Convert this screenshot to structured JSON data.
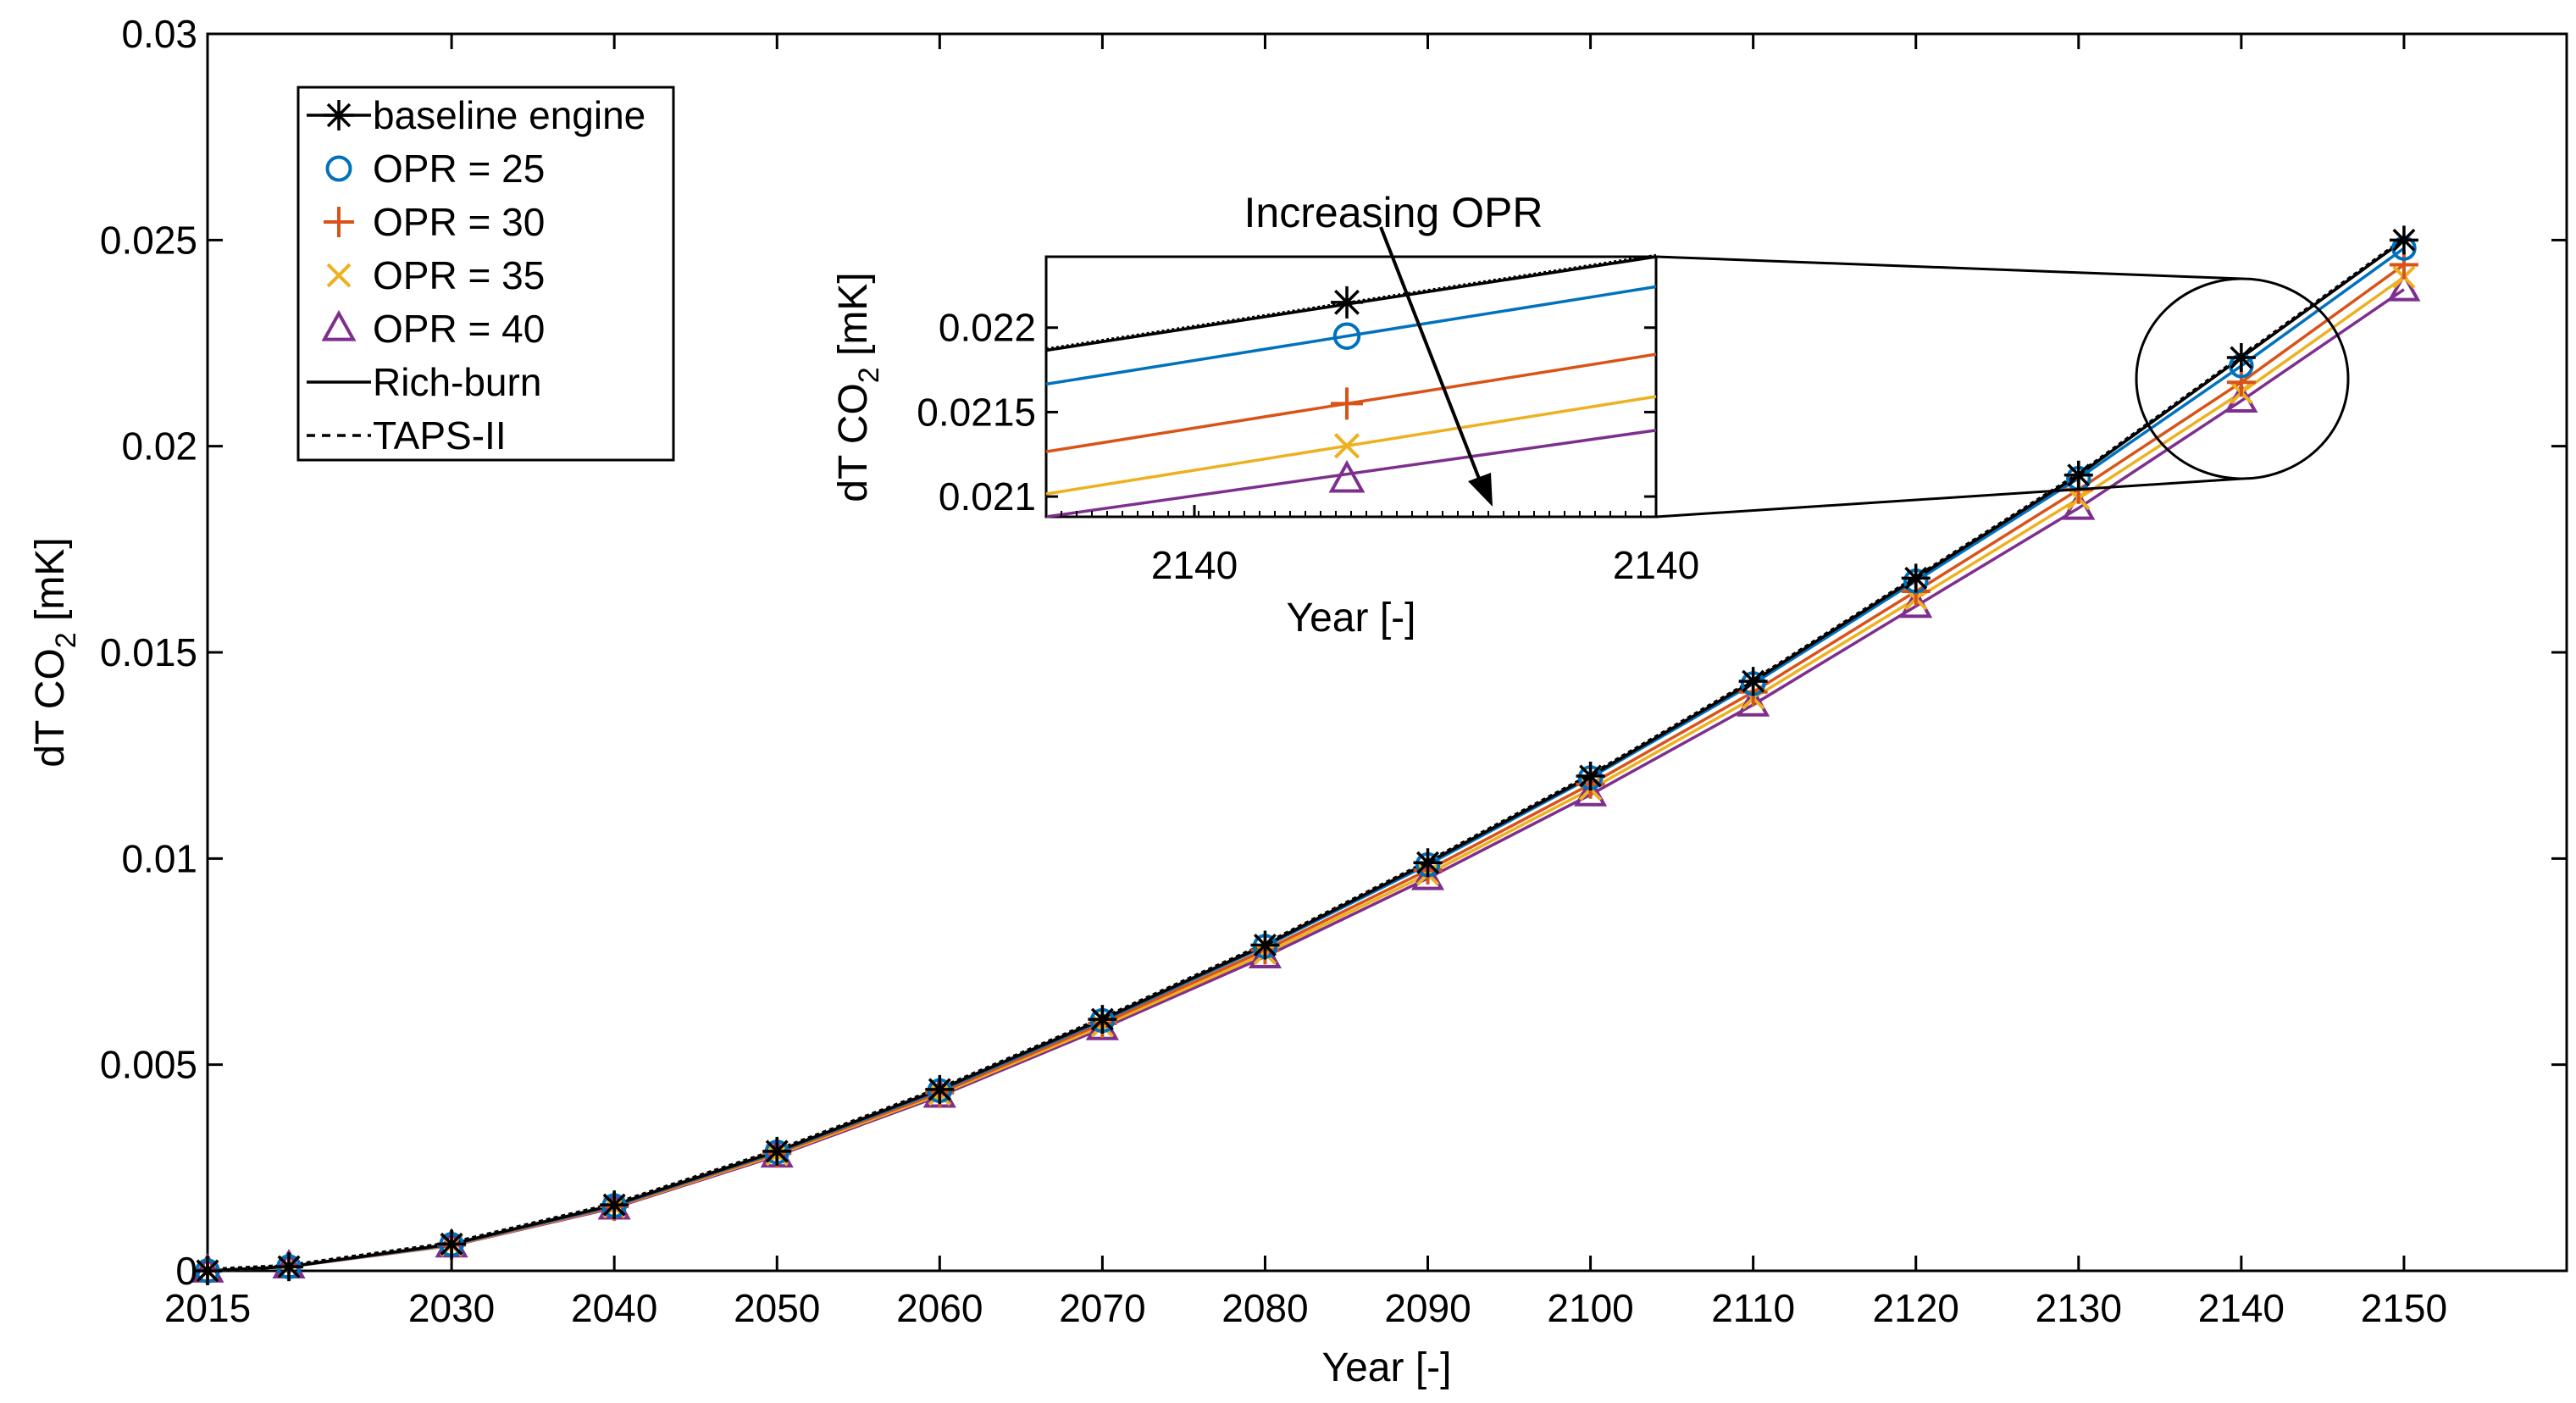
{
  "chart_data": {
    "type": "line",
    "xlabel": "Year [-]",
    "ylabel": "dT CO",
    "ylabel_sub": "2",
    "ylabel_unit": " [mK]",
    "xlim": [
      2015,
      2160
    ],
    "ylim": [
      0,
      0.03
    ],
    "x_ticks": [
      2015,
      2030,
      2040,
      2050,
      2060,
      2070,
      2080,
      2090,
      2100,
      2110,
      2120,
      2130,
      2140,
      2150
    ],
    "y_ticks": [
      "0",
      "0.005",
      "0.01",
      "0.015",
      "0.02",
      "0.025",
      "0.03"
    ],
    "x": [
      2015,
      2020,
      2030,
      2040,
      2050,
      2060,
      2070,
      2080,
      2090,
      2100,
      2110,
      2120,
      2130,
      2140,
      2150
    ],
    "legend_position": "top-left",
    "grid": false,
    "series": [
      {
        "name": "baseline engine",
        "color": "#000000",
        "marker": "asterisk",
        "values": [
          0,
          0.0001,
          0.00065,
          0.0016,
          0.0029,
          0.0044,
          0.0061,
          0.0079,
          0.0099,
          0.012,
          0.0143,
          0.0168,
          0.0193,
          0.02215,
          0.025
        ]
      },
      {
        "name": "OPR = 25",
        "color": "#0072BD",
        "marker": "circle",
        "values": [
          0,
          0.0001,
          0.00064,
          0.00158,
          0.00288,
          0.00437,
          0.00607,
          0.00787,
          0.00985,
          0.01196,
          0.01424,
          0.01673,
          0.01922,
          0.02195,
          0.0248
        ]
      },
      {
        "name": "OPR = 30",
        "color": "#D95319",
        "marker": "plus",
        "values": [
          0,
          0.0001,
          0.00063,
          0.00156,
          0.00285,
          0.00432,
          0.006,
          0.00778,
          0.00972,
          0.0118,
          0.01404,
          0.01648,
          0.01895,
          0.02155,
          0.0244
        ]
      },
      {
        "name": "OPR = 35",
        "color": "#EDB120",
        "marker": "x",
        "values": [
          0,
          0.0001,
          0.00062,
          0.00155,
          0.00282,
          0.00428,
          0.00594,
          0.0077,
          0.00962,
          0.01168,
          0.01389,
          0.0163,
          0.01873,
          0.0213,
          0.0241
        ]
      },
      {
        "name": "OPR = 40",
        "color": "#7E2F8E",
        "marker": "triangle",
        "values": [
          0,
          0.0001,
          0.00061,
          0.00153,
          0.00279,
          0.00424,
          0.00588,
          0.00762,
          0.00952,
          0.01155,
          0.01373,
          0.01612,
          0.0185,
          0.0211,
          0.0238
        ]
      }
    ],
    "line_styles": [
      {
        "name": "Rich-burn",
        "style": "solid"
      },
      {
        "name": "TAPS-II",
        "style": "dashed"
      }
    ],
    "annotation": "Increasing OPR",
    "inset": {
      "xlabel": "Year [-]",
      "ylabel": "dT CO",
      "ylabel_sub": "2",
      "ylabel_unit": " [mK]",
      "x_tick_labels": [
        "2140",
        "2140"
      ],
      "y_ticks": [
        "0.021",
        "0.0215",
        "0.022"
      ],
      "ylim": [
        0.02088,
        0.02242
      ],
      "points": [
        0.02215,
        0.02195,
        0.02155,
        0.0213,
        0.0211
      ]
    }
  }
}
